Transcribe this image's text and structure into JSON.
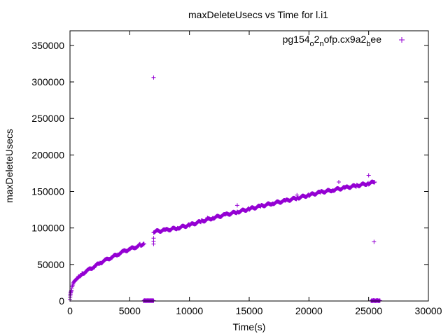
{
  "chart_data": {
    "type": "scatter",
    "title": "maxDeleteUsecs vs Time for l.i1",
    "xlabel": "Time(s)",
    "ylabel": "maxDeleteUsecs",
    "xlim": [
      0,
      30000
    ],
    "ylim": [
      0,
      370000
    ],
    "x_ticks": [
      0,
      5000,
      10000,
      15000,
      20000,
      25000,
      30000
    ],
    "y_ticks": [
      0,
      50000,
      100000,
      150000,
      200000,
      250000,
      300000,
      350000
    ],
    "x_tick_labels": [
      "0",
      "5000",
      "10000",
      "15000",
      "20000",
      "25000",
      "30000"
    ],
    "y_tick_labels": [
      "0",
      "50000",
      "100000",
      "150000",
      "200000",
      "250000",
      "300000",
      "350000"
    ],
    "grid": false,
    "legend_position": "top-right",
    "legend": {
      "base": "pg154",
      "parts": [
        {
          "text": "o",
          "sub": true
        },
        {
          "text": "2",
          "sub": false
        },
        {
          "text": "n",
          "sub": true
        },
        {
          "text": "ofp.cx9a2",
          "sub": false
        },
        {
          "text": "b",
          "sub": true
        },
        {
          "text": "ee",
          "sub": false
        }
      ]
    },
    "marker": "+",
    "series": [
      {
        "name": "pg154_o2_nofp.cx9a2_bee",
        "color": "#9400d3",
        "segments": [
          {
            "x": [
              0,
              50,
              150,
              300,
              500,
              750,
              1000,
              1500,
              2000,
              2500,
              3000,
              3500,
              4000,
              4500,
              5000,
              5500,
              5900,
              6200
            ],
            "y": [
              2000,
              10000,
              17000,
              24000,
              30000,
              34000,
              37000,
              42000,
              47000,
              52000,
              56000,
              60000,
              64000,
              68000,
              71000,
              74000,
              77000,
              78000
            ]
          },
          {
            "x": [
              7000,
              8000,
              9000,
              10000,
              11000,
              12000,
              13000,
              14000,
              15000,
              16000,
              17000,
              18000,
              19000,
              20000,
              21000,
              22000,
              23000,
              24000,
              25000,
              25500
            ],
            "y": [
              95000,
              97000,
              100000,
              104000,
              109000,
              114000,
              118000,
              122000,
              126000,
              130000,
              134000,
              137000,
              141000,
              145000,
              149000,
              152000,
              155000,
              158000,
              161000,
              163000
            ]
          }
        ],
        "clusters": [
          {
            "x_range": [
              6150,
              7000
            ],
            "y": 0
          },
          {
            "x_range": [
              25200,
              25950
            ],
            "y": 0
          }
        ],
        "outliers": [
          {
            "x": 7000,
            "y": 306000
          },
          {
            "x": 7000,
            "y": 86000
          },
          {
            "x": 7000,
            "y": 82000
          },
          {
            "x": 7000,
            "y": 78000
          },
          {
            "x": 25450,
            "y": 81000
          },
          {
            "x": 25000,
            "y": 172000
          },
          {
            "x": 22500,
            "y": 163000
          },
          {
            "x": 14000,
            "y": 131000
          },
          {
            "x": 11500,
            "y": 114000
          },
          {
            "x": 19000,
            "y": 145000
          }
        ]
      }
    ]
  }
}
